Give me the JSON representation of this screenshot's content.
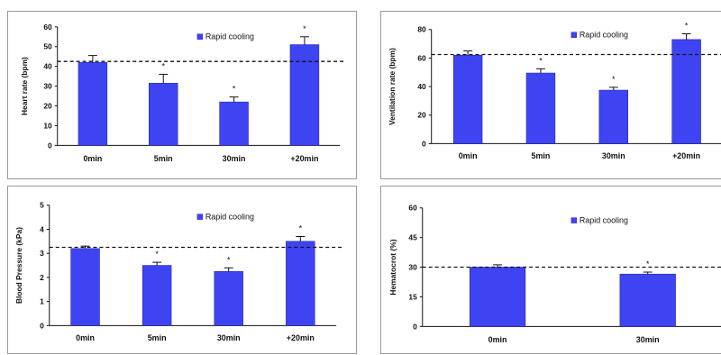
{
  "chart_data": [
    {
      "type": "bar",
      "ylabel": "Heart rate (bpm)",
      "categories": [
        "0min",
        "5min",
        "30min",
        "+20min"
      ],
      "series": [
        {
          "name": "Rapid cooling",
          "values": [
            42,
            31.5,
            22,
            51
          ],
          "errors": [
            3.5,
            4.5,
            2.5,
            4
          ]
        }
      ],
      "significant": [
        false,
        true,
        true,
        true
      ],
      "significance_marker": "*",
      "reference_line": 42.5,
      "ylim": [
        0,
        60
      ],
      "yticks": [
        0,
        10,
        20,
        30,
        40,
        50,
        60
      ],
      "legend_position": "top-right",
      "bar_color": "#3f44f2"
    },
    {
      "type": "bar",
      "ylabel": "Ventilation rate (bpm)",
      "categories": [
        "0min",
        "5min",
        "30min",
        "+20min"
      ],
      "series": [
        {
          "name": "Rapid cooling",
          "values": [
            62,
            49.5,
            37.5,
            73
          ],
          "errors": [
            3,
            3,
            2,
            4
          ]
        }
      ],
      "significant": [
        false,
        true,
        true,
        true
      ],
      "significance_marker": "*",
      "reference_line": 62.5,
      "ylim": [
        0,
        80
      ],
      "yticks": [
        0,
        20,
        40,
        60,
        80
      ],
      "legend_position": "top-right",
      "bar_color": "#3f44f2"
    },
    {
      "type": "bar",
      "ylabel": "Blood Pressure (kPa)",
      "categories": [
        "0min",
        "5min",
        "30min",
        "+20min"
      ],
      "series": [
        {
          "name": "Rapid cooling",
          "values": [
            3.2,
            2.5,
            2.25,
            3.5
          ],
          "errors": [
            0.1,
            0.13,
            0.15,
            0.2
          ]
        }
      ],
      "significant": [
        false,
        true,
        true,
        true
      ],
      "significance_marker": "*",
      "reference_line": 3.25,
      "ylim": [
        0,
        5
      ],
      "yticks": [
        0,
        1,
        2,
        3,
        4,
        5
      ],
      "legend_position": "top-right",
      "bar_color": "#3f44f2"
    },
    {
      "type": "bar",
      "ylabel": "Hematocrot (%)",
      "categories": [
        "0min",
        "30min"
      ],
      "series": [
        {
          "name": "Rapid cooling",
          "values": [
            30,
            26.5
          ],
          "errors": [
            1.2,
            1
          ]
        }
      ],
      "significant": [
        false,
        true
      ],
      "significance_marker": "*",
      "reference_line": 30,
      "ylim": [
        0,
        60
      ],
      "yticks": [
        0,
        15,
        30,
        45,
        60
      ],
      "legend_position": "top-right",
      "bar_color": "#3f44f2"
    }
  ]
}
